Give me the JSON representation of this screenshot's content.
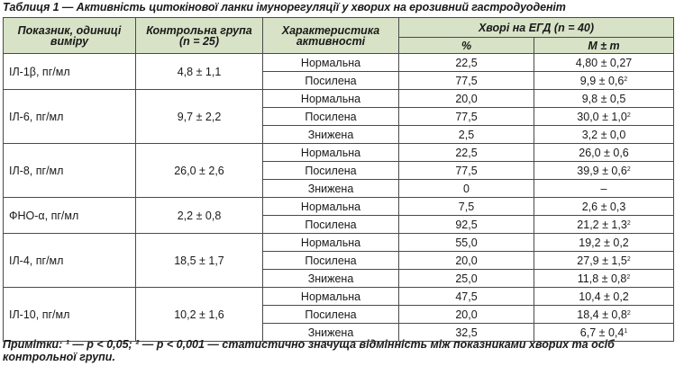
{
  "caption": "Таблиця 1 — Активність цитокінової ланки імунорегуляції у хворих на ерозивний гастродуоденіт",
  "headers": {
    "indicator": "Показник, одиниці виміру",
    "control": "Контрольна група (n = 25)",
    "activity": "Характеристика активності",
    "patients": "Хворі на ЕГД (n = 40)",
    "percent": "%",
    "mean": "M ± m"
  },
  "groups": [
    {
      "name": "ІЛ-1β, пг/мл",
      "control": "4,8 ± 1,1",
      "rows": [
        {
          "activity": "Нормальна",
          "percent": "22,5",
          "value": "4,80 ± 0,27",
          "sup": ""
        },
        {
          "activity": "Посилена",
          "percent": "77,5",
          "value": "9,9 ± 0,6",
          "sup": "2"
        }
      ]
    },
    {
      "name": "ІЛ-6, пг/мл",
      "control": "9,7 ± 2,2",
      "rows": [
        {
          "activity": "Нормальна",
          "percent": "20,0",
          "value": "9,8 ± 0,5",
          "sup": ""
        },
        {
          "activity": "Посилена",
          "percent": "77,5",
          "value": "30,0 ± 1,0",
          "sup": "2"
        },
        {
          "activity": "Знижена",
          "percent": "2,5",
          "value": "3,2 ± 0,0",
          "sup": ""
        }
      ]
    },
    {
      "name": "ІЛ-8, пг/мл",
      "control": "26,0 ± 2,6",
      "rows": [
        {
          "activity": "Нормальна",
          "percent": "22,5",
          "value": "26,0 ± 0,6",
          "sup": ""
        },
        {
          "activity": "Посилена",
          "percent": "77,5",
          "value": "39,9 ± 0,6",
          "sup": "2"
        },
        {
          "activity": "Знижена",
          "percent": "0",
          "value": "–",
          "sup": ""
        }
      ]
    },
    {
      "name": "ФНО-α, пг/мл",
      "control": "2,2 ± 0,8",
      "rows": [
        {
          "activity": "Нормальна",
          "percent": "7,5",
          "value": "2,6 ± 0,3",
          "sup": ""
        },
        {
          "activity": "Посилена",
          "percent": "92,5",
          "value": "21,2 ± 1,3",
          "sup": "2"
        }
      ]
    },
    {
      "name": "ІЛ-4, пг/мл",
      "control": "18,5 ± 1,7",
      "rows": [
        {
          "activity": "Нормальна",
          "percent": "55,0",
          "value": "19,2 ± 0,2",
          "sup": ""
        },
        {
          "activity": "Посилена",
          "percent": "20,0",
          "value": "27,9 ± 1,5",
          "sup": "2"
        },
        {
          "activity": "Знижена",
          "percent": "25,0",
          "value": "11,8 ± 0,8",
          "sup": "2"
        }
      ]
    },
    {
      "name": "ІЛ-10, пг/мл",
      "control": "10,2 ± 1,6",
      "rows": [
        {
          "activity": "Нормальна",
          "percent": "47,5",
          "value": "10,4 ± 0,2",
          "sup": ""
        },
        {
          "activity": "Посилена",
          "percent": "20,0",
          "value": "18,4 ± 0,8",
          "sup": "2"
        },
        {
          "activity": "Знижена",
          "percent": "32,5",
          "value": "6,7 ± 0,4",
          "sup": "1"
        }
      ]
    }
  ],
  "note": "Примітки: ¹ — p < 0,05; ² — p < 0,001 — статистично значуща відмінність між показниками хворих та осіб контрольної групи.",
  "colors": {
    "header_bg": "#d7e2c6",
    "border": "#4a4a4a"
  }
}
